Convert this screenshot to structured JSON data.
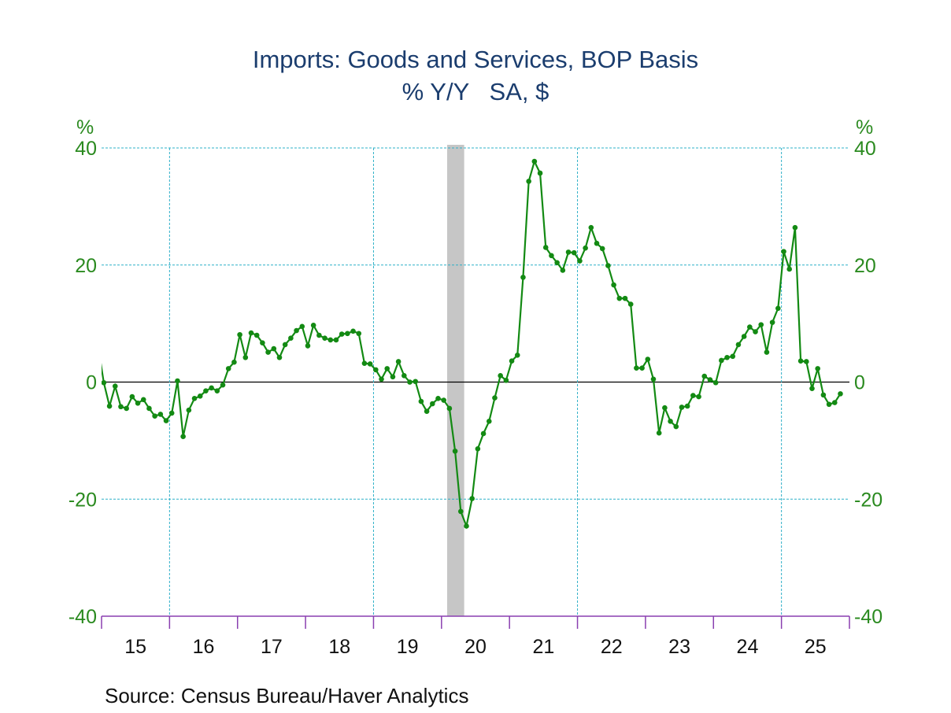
{
  "chart_data": {
    "type": "line",
    "title": "Imports: Goods and Services, BOP Basis",
    "subtitle": "% Y/Y   SA, $",
    "ylabel_left": "%",
    "ylabel_right": "%",
    "ylim": [
      -40,
      40
    ],
    "yticks": [
      40,
      20,
      0,
      -20,
      -40
    ],
    "xlim": [
      "2015-01",
      "2025-12"
    ],
    "xtick_labels": [
      "15",
      "16",
      "17",
      "18",
      "19",
      "20",
      "21",
      "22",
      "23",
      "24",
      "25"
    ],
    "grid": true,
    "recession": {
      "start": "2020-02",
      "end": "2020-04"
    },
    "series_color": "#138a13",
    "start": "2014-12",
    "values": [
      6.0,
      -0.1,
      -4.1,
      -0.7,
      -4.2,
      -4.5,
      -2.5,
      -3.6,
      -3.0,
      -4.5,
      -5.8,
      -5.5,
      -6.6,
      -5.3,
      0.2,
      -9.3,
      -4.8,
      -2.8,
      -2.4,
      -1.5,
      -1.0,
      -1.5,
      -0.5,
      2.3,
      3.4,
      8.1,
      4.2,
      8.4,
      8.0,
      6.7,
      5.1,
      5.7,
      4.2,
      6.4,
      7.5,
      8.8,
      9.5,
      6.2,
      9.7,
      8.0,
      7.5,
      7.2,
      7.2,
      8.2,
      8.3,
      8.7,
      8.3,
      3.2,
      3.1,
      2.1,
      0.5,
      2.3,
      0.9,
      3.5,
      1.1,
      0.0,
      0.1,
      -3.3,
      -5.0,
      -3.7,
      -2.8,
      -3.1,
      -4.5,
      -11.8,
      -22.1,
      -24.6,
      -19.9,
      -11.4,
      -8.8,
      -6.7,
      -2.7,
      1.1,
      0.3,
      3.6,
      4.6,
      17.9,
      34.3,
      37.7,
      35.7,
      23.0,
      21.6,
      20.4,
      19.1,
      22.2,
      22.1,
      20.7,
      22.9,
      26.4,
      23.7,
      22.8,
      19.9,
      16.6,
      14.3,
      14.3,
      13.3,
      2.4,
      2.4,
      3.9,
      0.5,
      -8.7,
      -4.4,
      -6.7,
      -7.6,
      -4.3,
      -4.1,
      -2.3,
      -2.5,
      1.0,
      0.4,
      -0.1,
      3.7,
      4.2,
      4.4,
      6.4,
      7.8,
      9.4,
      8.6,
      9.8,
      5.1,
      10.2,
      12.6,
      22.3,
      19.3,
      26.4,
      3.6,
      3.5,
      -1.1,
      2.3,
      -2.2,
      -3.8,
      -3.5,
      -2.0
    ],
    "source": "Source:  Census Bureau/Haver Analytics"
  }
}
